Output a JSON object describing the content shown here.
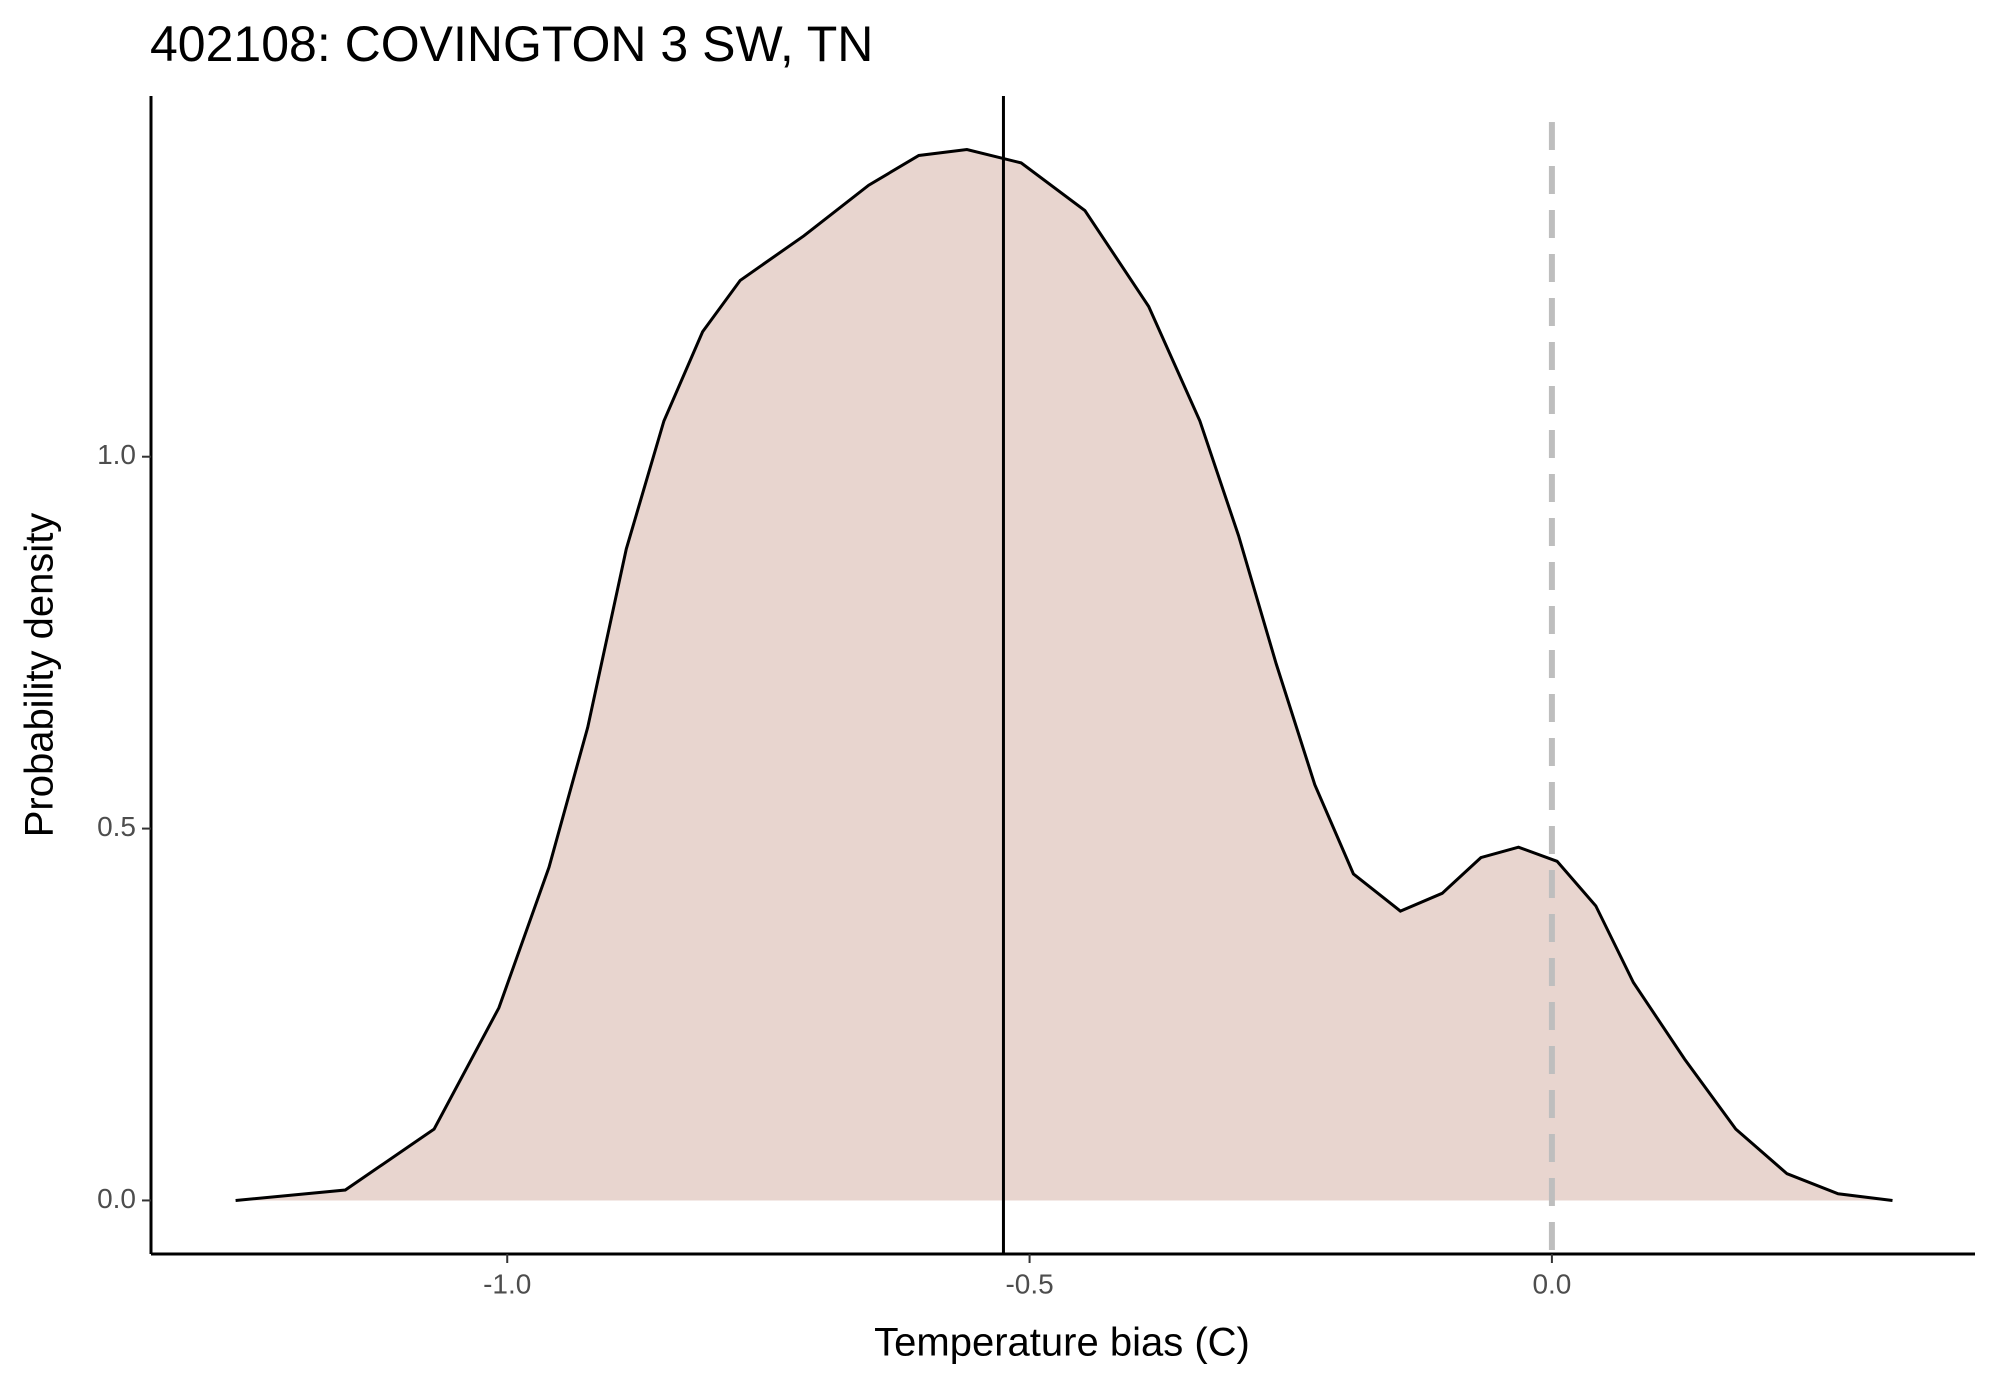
{
  "chart_data": {
    "type": "density",
    "title": "402108: COVINGTON 3 SW, TN",
    "x_label": "Temperature bias (C)",
    "y_label": "Probability density",
    "x": [
      -1.26,
      -1.155,
      -1.07,
      -1.008,
      -0.96,
      -0.923,
      -0.886,
      -0.85,
      -0.813,
      -0.777,
      -0.716,
      -0.654,
      -0.606,
      -0.56,
      -0.508,
      -0.447,
      -0.386,
      -0.337,
      -0.3,
      -0.264,
      -0.227,
      -0.19,
      -0.145,
      -0.105,
      -0.068,
      -0.032,
      0.005,
      0.042,
      0.078,
      0.127,
      0.176,
      0.225,
      0.274,
      0.326
    ],
    "values": [
      0,
      0.014,
      0.096,
      0.259,
      0.448,
      0.636,
      0.876,
      1.048,
      1.168,
      1.237,
      1.297,
      1.365,
      1.405,
      1.413,
      1.395,
      1.331,
      1.202,
      1.048,
      0.894,
      0.722,
      0.559,
      0.439,
      0.389,
      0.413,
      0.461,
      0.475,
      0.456,
      0.396,
      0.293,
      0.19,
      0.096,
      0.036,
      0.009,
      0
    ],
    "fill_color": "#e8d5cf",
    "line_color": "#000000",
    "mean_line": -0.525,
    "reference_line": 0,
    "reference_color": "#bebebe",
    "xlim": [
      -1.341,
      0.405
    ],
    "ylim": [
      -0.072,
      1.485
    ],
    "xticks": [
      {
        "value": -1,
        "label": "-1.0"
      },
      {
        "value": -0.5,
        "label": "-0.5"
      },
      {
        "value": 0,
        "label": "0.0"
      }
    ],
    "yticks": [
      {
        "value": 0,
        "label": "0.0"
      },
      {
        "value": 0.5,
        "label": "0.5"
      },
      {
        "value": 1,
        "label": "1.0"
      }
    ],
    "grid": false
  }
}
